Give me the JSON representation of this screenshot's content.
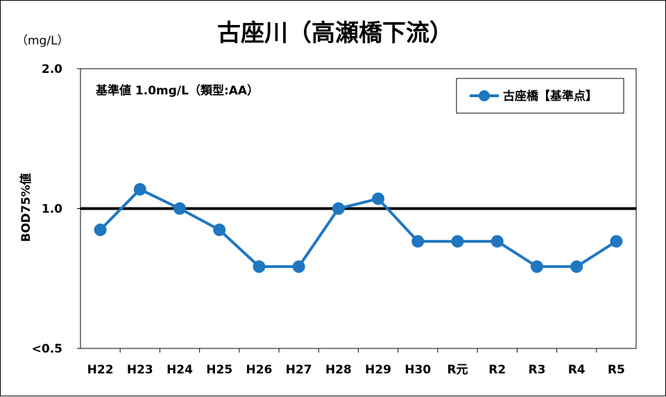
{
  "chart_data": {
    "type": "line",
    "title": "古座川（高瀬橋下流）",
    "unit_label": "（mg/L）",
    "ylabel": "BOD75%値",
    "annotation": "基準値  1.0mg/L（類型:AA）",
    "categories": [
      "H22",
      "H23",
      "H24",
      "H25",
      "H26",
      "H27",
      "H28",
      "H29",
      "H30",
      "R元",
      "R2",
      "R3",
      "R4",
      "R5"
    ],
    "series": [
      {
        "name": "古座橋【基準点】",
        "color": "#1F77C0",
        "values": [
          0.9,
          1.1,
          1.0,
          0.9,
          0.75,
          0.75,
          1.0,
          1.05,
          0.85,
          0.85,
          0.85,
          0.75,
          0.75,
          0.85
        ]
      }
    ],
    "standard_line": {
      "value": 1.0,
      "color": "#000000"
    },
    "ylim": [
      0.5,
      2.0
    ],
    "yticks": [
      {
        "value": 2.0,
        "label": "2.0"
      },
      {
        "value": 1.0,
        "label": "1.0"
      },
      {
        "value": 0.5,
        "label": "<0.5"
      }
    ],
    "y_scale": "log",
    "grid": false,
    "legend_position": "top-right"
  }
}
